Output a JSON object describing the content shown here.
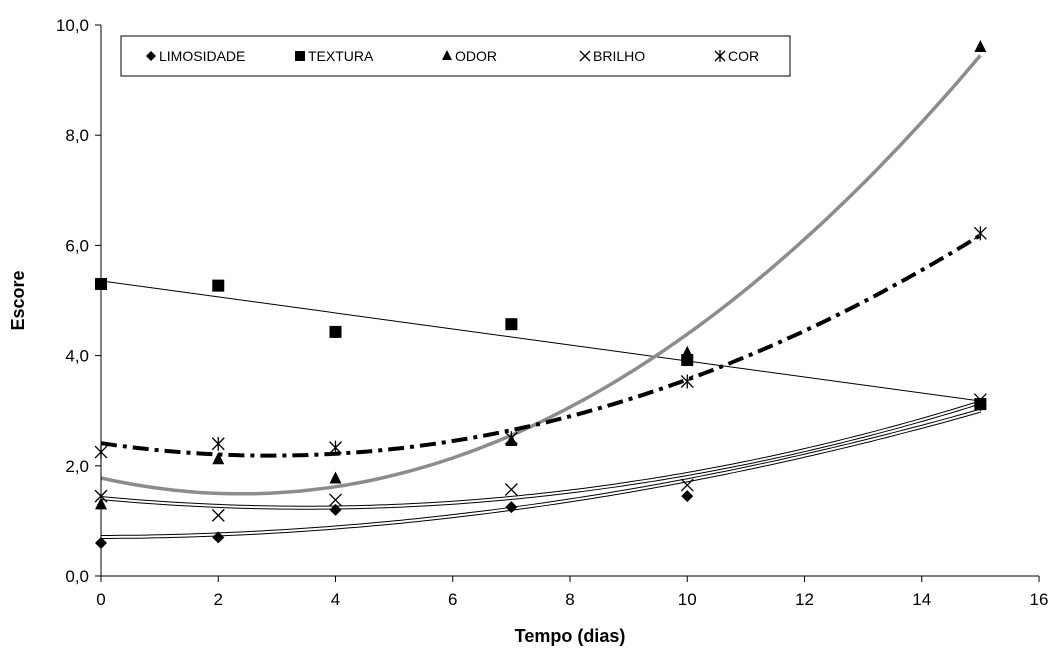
{
  "chart_data": {
    "type": "scatter",
    "xlabel": "Tempo (dias)",
    "ylabel": "Escore",
    "xlim": [
      0,
      16
    ],
    "ylim": [
      0,
      10
    ],
    "xticks": [
      "0",
      "2",
      "4",
      "6",
      "8",
      "10",
      "12",
      "14",
      "16"
    ],
    "yticks": [
      "0,0",
      "2,0",
      "4,0",
      "6,0",
      "8,0",
      "10,0"
    ],
    "legend_position": "top",
    "series": [
      {
        "name": "LIMOSIDADE",
        "marker": "diamond",
        "x": [
          0,
          2,
          4,
          7,
          10,
          15
        ],
        "y": [
          0.6,
          0.7,
          1.2,
          1.25,
          1.45,
          3.1
        ],
        "trend": "polynomial",
        "trend_color": "#000000",
        "trend_style": "double-thin"
      },
      {
        "name": "TEXTURA",
        "marker": "square",
        "x": [
          0,
          2,
          4,
          7,
          10,
          15
        ],
        "y": [
          5.3,
          5.27,
          4.43,
          4.57,
          3.92,
          3.12
        ],
        "trend": "linear",
        "trend_color": "#000000",
        "trend_style": "thin"
      },
      {
        "name": "ODOR",
        "marker": "triangle",
        "x": [
          0,
          2,
          4,
          7,
          10,
          15
        ],
        "y": [
          1.3,
          2.12,
          1.77,
          2.45,
          4.05,
          9.6
        ],
        "trend": "polynomial",
        "trend_color": "#8c8c8c",
        "trend_style": "thick-gray"
      },
      {
        "name": "BRILHO",
        "marker": "x",
        "x": [
          0,
          2,
          4,
          7,
          10,
          15
        ],
        "y": [
          1.45,
          1.1,
          1.38,
          1.57,
          1.65,
          3.2
        ],
        "trend": "polynomial",
        "trend_color": "#000000",
        "trend_style": "double-thin"
      },
      {
        "name": "COR",
        "marker": "asterisk",
        "x": [
          0,
          2,
          4,
          7,
          10,
          15
        ],
        "y": [
          2.25,
          2.4,
          2.33,
          2.5,
          3.53,
          6.22
        ],
        "trend": "polynomial",
        "trend_color": "#000000",
        "trend_style": "dash-dot-thick"
      }
    ]
  }
}
